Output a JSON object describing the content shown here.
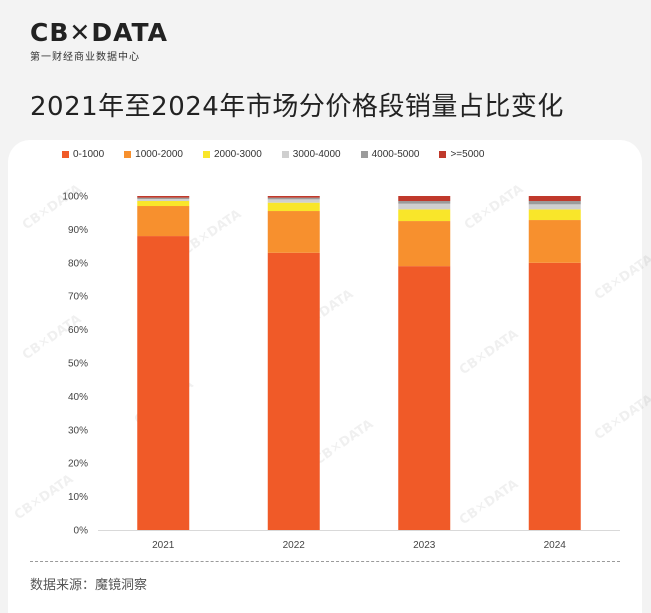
{
  "brand": {
    "logo": "CB✕DATA",
    "subtitle": "第一财经商业数据中心"
  },
  "page_title": "2021年至2024年市场分价格段销量占比变化",
  "source_text": "数据来源：魔镜洞察",
  "watermark_text": "CB✕DATA",
  "colors": {
    "0-1000": "#f05a28",
    "1000-2000": "#f7902e",
    "2000-3000": "#f9e62a",
    "3000-4000": "#cfcfcf",
    "4000-5000": "#9b9b9b",
    ">=5000": "#c0392b"
  },
  "chart_data": {
    "type": "bar",
    "stacked": true,
    "title": "2021年至2024年市场分价格段销量占比变化",
    "categories": [
      "2021",
      "2022",
      "2023",
      "2024"
    ],
    "series": [
      {
        "name": "0-1000",
        "values": [
          88,
          83,
          79,
          80
        ]
      },
      {
        "name": "1000-2000",
        "values": [
          9,
          12.5,
          13.5,
          12.8
        ]
      },
      {
        "name": "2000-3000",
        "values": [
          1.5,
          2.5,
          3.5,
          3.2
        ]
      },
      {
        "name": "3000-4000",
        "values": [
          0.6,
          1,
          1.7,
          1.5
        ]
      },
      {
        "name": "4000-5000",
        "values": [
          0.4,
          0.5,
          0.8,
          1
        ]
      },
      {
        ">=5000": null,
        "name": ">=5000",
        "values": [
          0.5,
          0.5,
          1.5,
          1.5
        ]
      }
    ],
    "y_ticks": [
      "0%",
      "10%",
      "20%",
      "30%",
      "40%",
      "50%",
      "60%",
      "70%",
      "80%",
      "90%",
      "100%"
    ],
    "ylim": [
      0,
      100
    ],
    "xlabel": "",
    "ylabel": "",
    "grid": false,
    "legend_position": "top-left"
  }
}
